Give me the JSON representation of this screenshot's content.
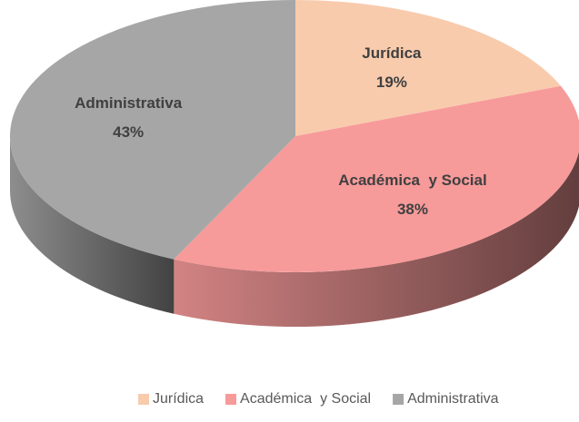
{
  "chart_data": {
    "type": "pie",
    "categories": [
      "Jurídica",
      "Académica  y Social",
      "Administrativa"
    ],
    "values": [
      19,
      38,
      43
    ],
    "value_labels": [
      "19%",
      "38%",
      "43%"
    ],
    "colors": [
      "#f8cbad",
      "#f79a9a",
      "#a6a6a6"
    ],
    "legend": "bottom"
  }
}
